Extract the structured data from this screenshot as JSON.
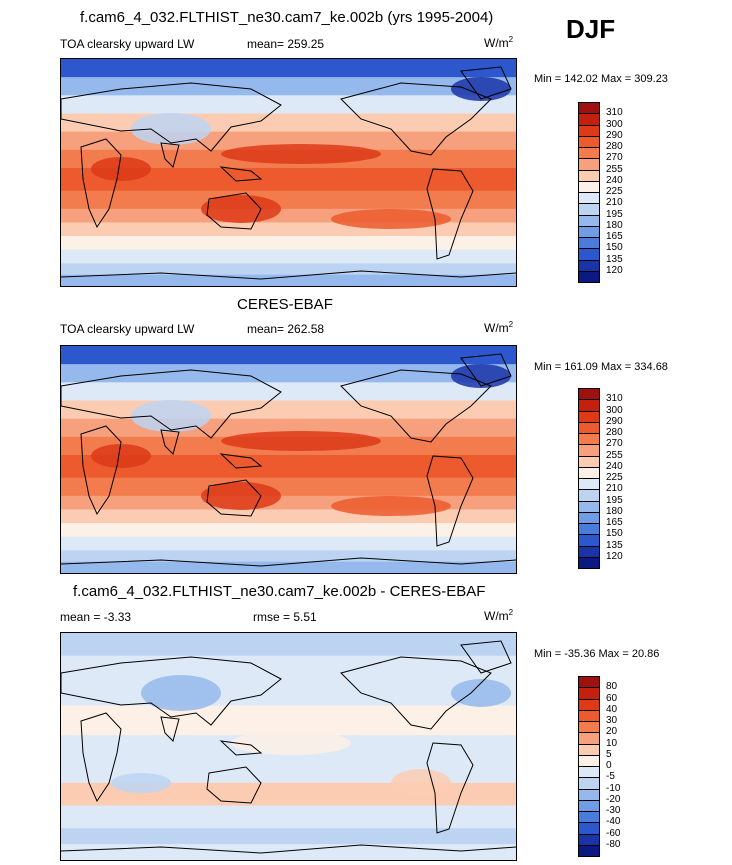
{
  "season": "DJF",
  "panels": [
    {
      "title": "f.cam6_4_032.FLTHIST_ne30.cam7_ke.002b (yrs 1995-2004)",
      "left_label": "TOA clearsky upward LW",
      "center_label": "mean= 259.25",
      "units": "W/m",
      "units_sup": "2",
      "minmax": "Min = 142.02 Max = 309.23",
      "colorbar_levels": [
        "310",
        "300",
        "290",
        "280",
        "270",
        "255",
        "240",
        "225",
        "210",
        "195",
        "180",
        "165",
        "150",
        "135",
        "120"
      ],
      "colorbar_colors": [
        "#a01010",
        "#c42010",
        "#dd3a18",
        "#ec5a2e",
        "#f27c4e",
        "#f6a07e",
        "#fbccb2",
        "#fdf0e6",
        "#dde9f7",
        "#bcd4f2",
        "#95b9ec",
        "#6f9ce2",
        "#4a7cdb",
        "#2d57cc",
        "#1a34a8",
        "#0a1a80"
      ]
    },
    {
      "title": "CERES-EBAF",
      "left_label": "TOA clearsky upward LW",
      "center_label": "mean= 262.58",
      "units": "W/m",
      "units_sup": "2",
      "minmax": "Min = 161.09 Max = 334.68",
      "colorbar_levels": [
        "310",
        "300",
        "290",
        "280",
        "270",
        "255",
        "240",
        "225",
        "210",
        "195",
        "180",
        "165",
        "150",
        "135",
        "120"
      ],
      "colorbar_colors": [
        "#a01010",
        "#c42010",
        "#dd3a18",
        "#ec5a2e",
        "#f27c4e",
        "#f6a07e",
        "#fbccb2",
        "#fdf0e6",
        "#dde9f7",
        "#bcd4f2",
        "#95b9ec",
        "#6f9ce2",
        "#4a7cdb",
        "#2d57cc",
        "#1a34a8",
        "#0a1a80"
      ]
    },
    {
      "title": "f.cam6_4_032.FLTHIST_ne30.cam7_ke.002b - CERES-EBAF",
      "left_label": "mean =  -3.33",
      "center_label": "rmse =   5.51",
      "units": "W/m",
      "units_sup": "2",
      "minmax": "Min = -35.36 Max =  20.86",
      "colorbar_levels": [
        "80",
        "60",
        "40",
        "30",
        "20",
        "10",
        "5",
        "0",
        "-5",
        "-10",
        "-20",
        "-30",
        "-40",
        "-60",
        "-80"
      ],
      "colorbar_colors": [
        "#a01010",
        "#c42010",
        "#dd3a18",
        "#ec5a2e",
        "#f27c4e",
        "#f6a07e",
        "#fbccb2",
        "#fdf0e6",
        "#dde9f7",
        "#bcd4f2",
        "#95b9ec",
        "#6f9ce2",
        "#4a7cdb",
        "#2d57cc",
        "#1a34a8",
        "#0a1a80"
      ]
    }
  ],
  "chart_data": [
    {
      "type": "heatmap",
      "title": "f.cam6_4_032.FLTHIST_ne30.cam7_ke.002b (yrs 1995-2004)",
      "variable": "TOA clearsky upward LW",
      "units": "W/m2",
      "mean": 259.25,
      "min": 142.02,
      "max": 309.23,
      "levels": [
        120,
        135,
        150,
        165,
        180,
        195,
        210,
        225,
        240,
        255,
        270,
        280,
        290,
        300,
        310
      ]
    },
    {
      "type": "heatmap",
      "title": "CERES-EBAF",
      "variable": "TOA clearsky upward LW",
      "units": "W/m2",
      "mean": 262.58,
      "min": 161.09,
      "max": 334.68,
      "levels": [
        120,
        135,
        150,
        165,
        180,
        195,
        210,
        225,
        240,
        255,
        270,
        280,
        290,
        300,
        310
      ]
    },
    {
      "type": "heatmap",
      "title": "f.cam6_4_032.FLTHIST_ne30.cam7_ke.002b - CERES-EBAF",
      "units": "W/m2",
      "mean": -3.33,
      "rmse": 5.51,
      "min": -35.36,
      "max": 20.86,
      "levels": [
        -80,
        -60,
        -40,
        -30,
        -20,
        -10,
        -5,
        0,
        5,
        10,
        20,
        30,
        40,
        60,
        80
      ]
    }
  ]
}
